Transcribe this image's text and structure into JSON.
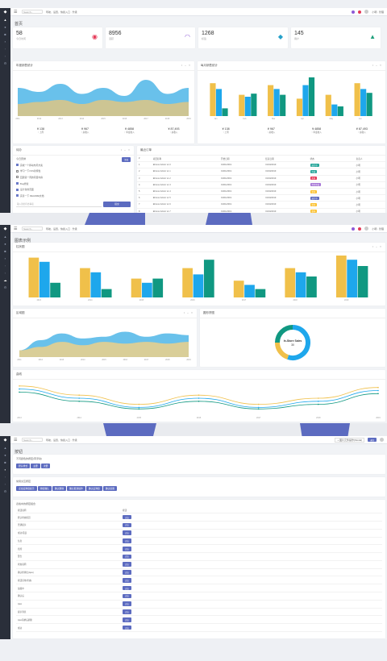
{
  "app": {
    "search_placeholder": "Search...",
    "menu": "导航、设置、快捷入口  ·  升级",
    "user_name": "小明 · 管理"
  },
  "dashboard": {
    "title": "首页",
    "stats": [
      {
        "value": "58",
        "label": "今日访问",
        "icon": "eye-icon",
        "color": "#e53957"
      },
      {
        "value": "8956",
        "label": "活跃",
        "icon": "wifi-icon",
        "color": "#8e5ad6"
      },
      {
        "value": "1268",
        "label": "标签",
        "icon": "tag-icon",
        "color": "#24a0c9"
      },
      {
        "value": "145",
        "label": "用户",
        "icon": "users-icon",
        "color": "#1e9f7b"
      }
    ],
    "area_card_title": "年度销售统计",
    "bar_card_title": "每月销售统计",
    "area_footer": [
      {
        "num": "¥ 138",
        "lbl": "↑ 上周"
      },
      {
        "num": "¥ 967",
        "lbl": "↑ 总收入"
      },
      {
        "num": "¥ 4858",
        "lbl": "↑ 年度收入"
      },
      {
        "num": "¥ 87,493",
        "lbl": "↑ 总收入"
      }
    ],
    "bar_footer": [
      {
        "num": "¥ 138",
        "lbl": "↑ 上周"
      },
      {
        "num": "¥ 967",
        "lbl": "↑ 总收入"
      },
      {
        "num": "¥ 4858",
        "lbl": "↑ 年度收入"
      },
      {
        "num": "¥ 87,493",
        "lbl": "↑ 总收入"
      }
    ],
    "todo": {
      "title": "待办",
      "subtitle": "今日安排",
      "add_button": "添加",
      "items": [
        {
          "text": "完成一个移动布局方案",
          "done": true
        },
        {
          "text": "学习一下CSS新特性",
          "done": false
        },
        {
          "text": "回顾第一周的项目内容",
          "done": false
        },
        {
          "text": "Bug修复",
          "done": true
        },
        {
          "text": "设计新的页面",
          "done": true
        },
        {
          "text": "完善一下 README文档",
          "done": true
        }
      ],
      "input_placeholder": "输入新的待办事项",
      "submit_button": "提交"
    },
    "orders": {
      "title": "最近订单",
      "columns": [
        "#",
        "项目名称",
        "开始日期",
        "结束日期",
        "状态",
        "负责人"
      ],
      "rows": [
        {
          "n": "1",
          "name": "Ebruno Admin v1.0",
          "start": "01/01/2019",
          "end": "01/04/2019",
          "status": "进行中",
          "color": "#26a69a",
          "owner": "小明"
        },
        {
          "n": "2",
          "name": "Ebruno Admin v1.1",
          "start": "01/01/2019",
          "end": "01/04/2019",
          "status": "完成",
          "color": "#26a69a",
          "owner": "小明"
        },
        {
          "n": "3",
          "name": "Ebruno Admin v1.2",
          "start": "01/01/2019",
          "end": "01/04/2019",
          "status": "失败",
          "color": "#e53957",
          "owner": "小明"
        },
        {
          "n": "4",
          "name": "Ebruno Admin v1.3",
          "start": "01/01/2019",
          "end": "01/04/2019",
          "status": "等待审核",
          "color": "#a675d6",
          "owner": "小明"
        },
        {
          "n": "5",
          "name": "Ebruno Admin v1.4",
          "start": "01/01/2019",
          "end": "01/04/2019",
          "status": "暂停",
          "color": "#fbc02d",
          "owner": "小明"
        },
        {
          "n": "6",
          "name": "Ebruno Admin v1.5",
          "start": "01/01/2019",
          "end": "01/04/2019",
          "status": "进行中",
          "color": "#5c6bc0",
          "owner": "小明"
        },
        {
          "n": "7",
          "name": "Ebruno Admin v1.6",
          "start": "01/01/2019",
          "end": "01/04/2019",
          "status": "暂停",
          "color": "#fbc02d",
          "owner": "小明"
        },
        {
          "n": "8",
          "name": "Ebruno Admin v1.7",
          "start": "01/01/2019",
          "end": "01/04/2019",
          "status": "暂停",
          "color": "#fbc02d",
          "owner": "小明"
        }
      ]
    }
  },
  "charts": {
    "title": "图表示例",
    "bar_title": "柱状图",
    "area_title": "区域图",
    "donut_title": "圆形饼图",
    "line_title": "曲线",
    "donut_label": "In-Store Sales",
    "donut_value": "30"
  },
  "widgets": {
    "title": "按钮",
    "header_button": "+ 图片元件操作(Modal)",
    "header_button2": "返回",
    "section1_title": "不同颜色的按钮(带浮动)",
    "section1_buttons": [
      "默认样式",
      "主要",
      "次要"
    ],
    "section2_title": "常用交互按钮",
    "section2_buttons": [
      "点击后弹窗提示",
      "弹窗确认",
      "确认删除",
      "确认取消操作",
      "确认后弹窗",
      "确认提醒"
    ],
    "section3_title": "表格中的按钮组合",
    "table_cols": [
      "按钮说明",
      "按钮"
    ],
    "table_rows": [
      "默认状态按钮",
      "普通提示",
      "成功/错误",
      "信息",
      "危险",
      "警告",
      "状态说明",
      "确认框弹出(Ajax)",
      "按钮禁用(状态)",
      "加载中",
      "确认后",
      "Ajax",
      "提示消息",
      "Ajax请求后刷新",
      "成功"
    ],
    "table_btn": "点击"
  },
  "chart_data": [
    {
      "type": "area",
      "categories": [
        "2011",
        "2012",
        "2013",
        "2014",
        "2015",
        "2016",
        "2017",
        "2018",
        "2019"
      ],
      "series": [
        {
          "values": [
            70,
            60,
            80,
            55,
            70,
            50,
            90,
            55,
            70
          ]
        },
        {
          "values": [
            30,
            35,
            40,
            30,
            40,
            35,
            40,
            30,
            35
          ]
        }
      ],
      "color_a": "#4fb6e8",
      "color_b": "#d8c58a"
    },
    {
      "type": "bar",
      "categories": [
        "Jan",
        "Feb",
        "Mar",
        "Apr",
        "May",
        "Jun"
      ],
      "series": [
        {
          "values": [
            85,
            55,
            80,
            45,
            55,
            85
          ]
        },
        {
          "values": [
            70,
            50,
            70,
            80,
            30,
            70
          ]
        },
        {
          "values": [
            20,
            58,
            55,
            100,
            25,
            60
          ]
        }
      ],
      "colors": [
        "#f0c04a",
        "#1ea7ec",
        "#109881"
      ]
    },
    {
      "type": "bar",
      "categories": [
        "2013",
        "2014",
        "2015",
        "2016",
        "2017",
        "2018",
        "2019"
      ],
      "series": [
        {
          "values": [
            95,
            70,
            45,
            70,
            40,
            70,
            100
          ]
        },
        {
          "values": [
            85,
            60,
            35,
            55,
            30,
            60,
            90
          ]
        },
        {
          "values": [
            35,
            20,
            45,
            90,
            20,
            50,
            75
          ]
        }
      ],
      "colors": [
        "#f0c04a",
        "#1ea7ec",
        "#109881"
      ]
    },
    {
      "type": "area",
      "categories": [
        "2011",
        "2012",
        "2013",
        "2014",
        "2015",
        "2016",
        "2017",
        "2018",
        "2019"
      ],
      "series": [
        {
          "values": [
            20,
            50,
            70,
            55,
            60,
            75,
            60,
            70,
            65
          ]
        },
        {
          "values": [
            20,
            30,
            45,
            35,
            45,
            40,
            45,
            40,
            45
          ]
        }
      ],
      "color_a": "#4fb6e8",
      "color_b": "#e5cf8f"
    },
    {
      "type": "pie",
      "values": [
        55,
        20,
        25
      ],
      "colors": [
        "#1ea7ec",
        "#f0c04a",
        "#109881"
      ],
      "label": "In-Store Sales",
      "center": "30"
    },
    {
      "type": "line",
      "categories": [
        "2013",
        "2014",
        "2015",
        "2016",
        "2017",
        "2018",
        "2019"
      ],
      "series": [
        {
          "values": [
            90,
            60,
            30,
            60,
            30,
            50,
            85
          ]
        },
        {
          "values": [
            80,
            50,
            20,
            50,
            20,
            40,
            75
          ]
        },
        {
          "values": [
            70,
            40,
            15,
            40,
            15,
            30,
            65
          ]
        }
      ],
      "colors": [
        "#f0c04a",
        "#1ea7ec",
        "#109881"
      ]
    }
  ]
}
